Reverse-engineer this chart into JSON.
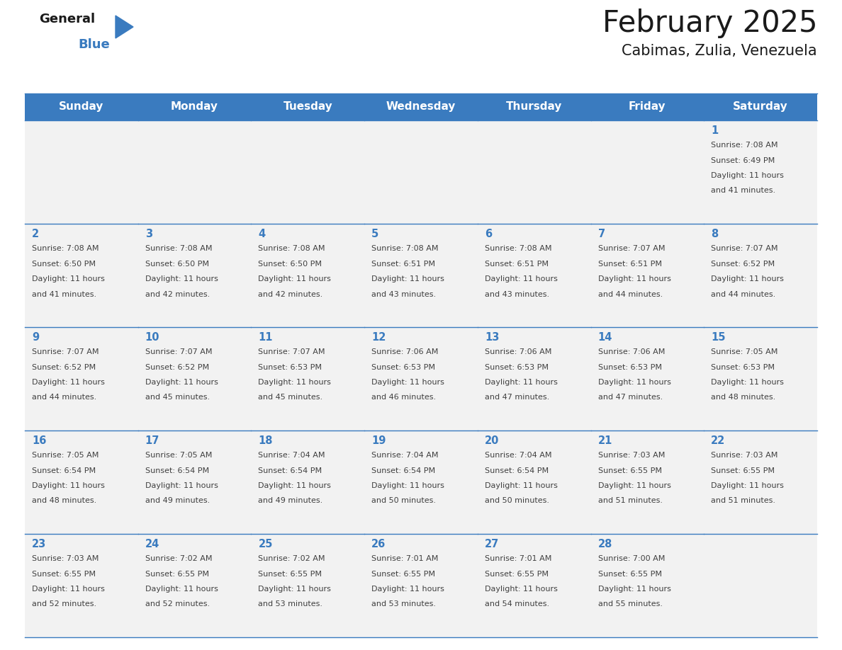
{
  "title": "February 2025",
  "subtitle": "Cabimas, Zulia, Venezuela",
  "header_bg_color": "#3a7bbf",
  "header_text_color": "#ffffff",
  "cell_bg_color": "#f2f2f2",
  "day_number_color": "#3a7bbf",
  "text_color": "#404040",
  "border_color": "#3a7bbf",
  "days_of_week": [
    "Sunday",
    "Monday",
    "Tuesday",
    "Wednesday",
    "Thursday",
    "Friday",
    "Saturday"
  ],
  "calendar_data": [
    [
      null,
      null,
      null,
      null,
      null,
      null,
      {
        "day": 1,
        "sunrise": "7:08 AM",
        "sunset": "6:49 PM",
        "daylight": "11 hours",
        "daylight2": "and 41 minutes."
      }
    ],
    [
      {
        "day": 2,
        "sunrise": "7:08 AM",
        "sunset": "6:50 PM",
        "daylight": "11 hours",
        "daylight2": "and 41 minutes."
      },
      {
        "day": 3,
        "sunrise": "7:08 AM",
        "sunset": "6:50 PM",
        "daylight": "11 hours",
        "daylight2": "and 42 minutes."
      },
      {
        "day": 4,
        "sunrise": "7:08 AM",
        "sunset": "6:50 PM",
        "daylight": "11 hours",
        "daylight2": "and 42 minutes."
      },
      {
        "day": 5,
        "sunrise": "7:08 AM",
        "sunset": "6:51 PM",
        "daylight": "11 hours",
        "daylight2": "and 43 minutes."
      },
      {
        "day": 6,
        "sunrise": "7:08 AM",
        "sunset": "6:51 PM",
        "daylight": "11 hours",
        "daylight2": "and 43 minutes."
      },
      {
        "day": 7,
        "sunrise": "7:07 AM",
        "sunset": "6:51 PM",
        "daylight": "11 hours",
        "daylight2": "and 44 minutes."
      },
      {
        "day": 8,
        "sunrise": "7:07 AM",
        "sunset": "6:52 PM",
        "daylight": "11 hours",
        "daylight2": "and 44 minutes."
      }
    ],
    [
      {
        "day": 9,
        "sunrise": "7:07 AM",
        "sunset": "6:52 PM",
        "daylight": "11 hours",
        "daylight2": "and 44 minutes."
      },
      {
        "day": 10,
        "sunrise": "7:07 AM",
        "sunset": "6:52 PM",
        "daylight": "11 hours",
        "daylight2": "and 45 minutes."
      },
      {
        "day": 11,
        "sunrise": "7:07 AM",
        "sunset": "6:53 PM",
        "daylight": "11 hours",
        "daylight2": "and 45 minutes."
      },
      {
        "day": 12,
        "sunrise": "7:06 AM",
        "sunset": "6:53 PM",
        "daylight": "11 hours",
        "daylight2": "and 46 minutes."
      },
      {
        "day": 13,
        "sunrise": "7:06 AM",
        "sunset": "6:53 PM",
        "daylight": "11 hours",
        "daylight2": "and 47 minutes."
      },
      {
        "day": 14,
        "sunrise": "7:06 AM",
        "sunset": "6:53 PM",
        "daylight": "11 hours",
        "daylight2": "and 47 minutes."
      },
      {
        "day": 15,
        "sunrise": "7:05 AM",
        "sunset": "6:53 PM",
        "daylight": "11 hours",
        "daylight2": "and 48 minutes."
      }
    ],
    [
      {
        "day": 16,
        "sunrise": "7:05 AM",
        "sunset": "6:54 PM",
        "daylight": "11 hours",
        "daylight2": "and 48 minutes."
      },
      {
        "day": 17,
        "sunrise": "7:05 AM",
        "sunset": "6:54 PM",
        "daylight": "11 hours",
        "daylight2": "and 49 minutes."
      },
      {
        "day": 18,
        "sunrise": "7:04 AM",
        "sunset": "6:54 PM",
        "daylight": "11 hours",
        "daylight2": "and 49 minutes."
      },
      {
        "day": 19,
        "sunrise": "7:04 AM",
        "sunset": "6:54 PM",
        "daylight": "11 hours",
        "daylight2": "and 50 minutes."
      },
      {
        "day": 20,
        "sunrise": "7:04 AM",
        "sunset": "6:54 PM",
        "daylight": "11 hours",
        "daylight2": "and 50 minutes."
      },
      {
        "day": 21,
        "sunrise": "7:03 AM",
        "sunset": "6:55 PM",
        "daylight": "11 hours",
        "daylight2": "and 51 minutes."
      },
      {
        "day": 22,
        "sunrise": "7:03 AM",
        "sunset": "6:55 PM",
        "daylight": "11 hours",
        "daylight2": "and 51 minutes."
      }
    ],
    [
      {
        "day": 23,
        "sunrise": "7:03 AM",
        "sunset": "6:55 PM",
        "daylight": "11 hours",
        "daylight2": "and 52 minutes."
      },
      {
        "day": 24,
        "sunrise": "7:02 AM",
        "sunset": "6:55 PM",
        "daylight": "11 hours",
        "daylight2": "and 52 minutes."
      },
      {
        "day": 25,
        "sunrise": "7:02 AM",
        "sunset": "6:55 PM",
        "daylight": "11 hours",
        "daylight2": "and 53 minutes."
      },
      {
        "day": 26,
        "sunrise": "7:01 AM",
        "sunset": "6:55 PM",
        "daylight": "11 hours",
        "daylight2": "and 53 minutes."
      },
      {
        "day": 27,
        "sunrise": "7:01 AM",
        "sunset": "6:55 PM",
        "daylight": "11 hours",
        "daylight2": "and 54 minutes."
      },
      {
        "day": 28,
        "sunrise": "7:00 AM",
        "sunset": "6:55 PM",
        "daylight": "11 hours",
        "daylight2": "and 55 minutes."
      },
      null
    ]
  ],
  "fig_width": 11.88,
  "fig_height": 9.18,
  "dpi": 100
}
